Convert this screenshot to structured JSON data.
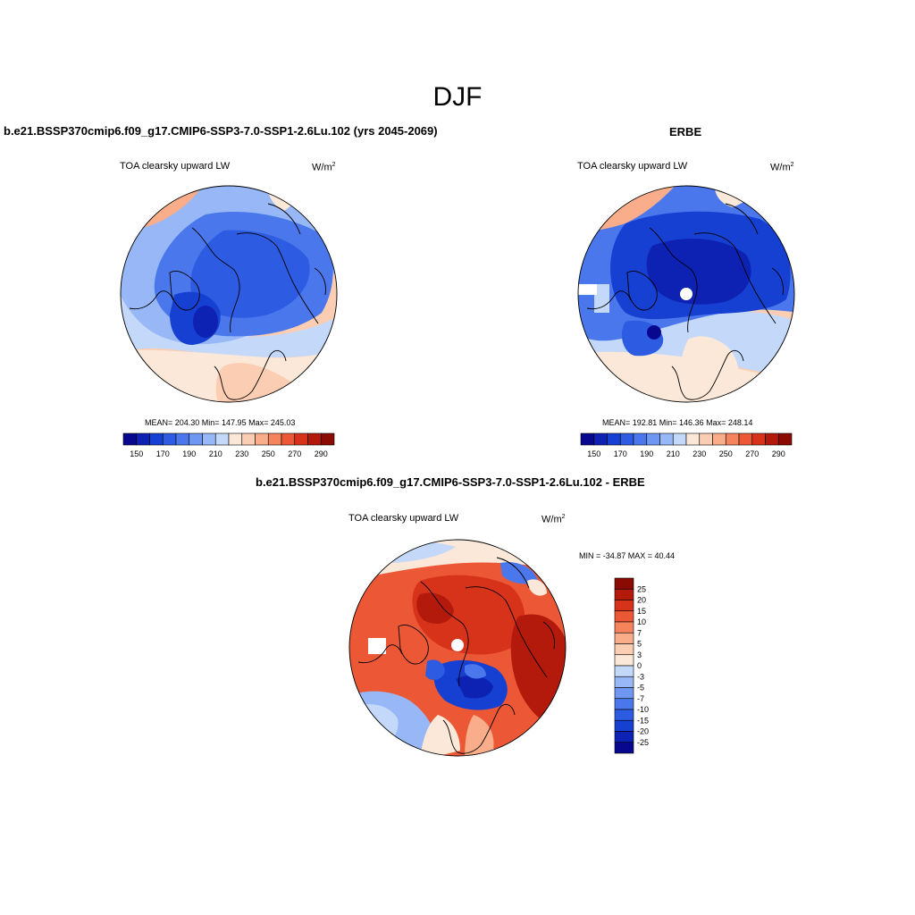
{
  "figure": {
    "season": "DJF",
    "panel_a_title": "b.e21.BSSP370cmip6.f09_g17.CMIP6-SSP3-7.0-SSP1-2.6Lu.102 (yrs 2045-2069)",
    "panel_b_title": "ERBE",
    "panel_c_title": "b.e21.BSSP370cmip6.f09_g17.CMIP6-SSP3-7.0-SSP1-2.6Lu.102 - ERBE"
  },
  "chart_data": [
    {
      "type": "heatmap",
      "projection": "north polar stereographic",
      "title": "TOA clearsky upward LW",
      "units": "W/m",
      "units_exp": "2",
      "stats": "MEAN= 204.30  Min= 147.95  Max= 245.03",
      "mean": 204.3,
      "min": 147.95,
      "max": 245.03,
      "colorbar": {
        "orientation": "horizontal",
        "levels": [
          150,
          160,
          170,
          180,
          190,
          200,
          210,
          220,
          230,
          240,
          250,
          260,
          270,
          280,
          290
        ],
        "tick_labels": [
          "150",
          "170",
          "190",
          "210",
          "230",
          "250",
          "270",
          "290"
        ],
        "colors": [
          "#08088e",
          "#0d21b3",
          "#1540d1",
          "#2d5be2",
          "#4a78ec",
          "#6f97f2",
          "#97b7f6",
          "#c4d9fa",
          "#fce8d8",
          "#fbcdb2",
          "#f9ad8a",
          "#f5845d",
          "#ec5835",
          "#d7331a",
          "#b41a0c",
          "#8a0a04"
        ]
      }
    },
    {
      "type": "heatmap",
      "projection": "north polar stereographic",
      "title": "TOA clearsky upward LW",
      "units": "W/m",
      "units_exp": "2",
      "stats": "MEAN= 192.81  Min= 146.36  Max= 248.14",
      "mean": 192.81,
      "min": 146.36,
      "max": 248.14,
      "colorbar": {
        "orientation": "horizontal",
        "levels": [
          150,
          160,
          170,
          180,
          190,
          200,
          210,
          220,
          230,
          240,
          250,
          260,
          270,
          280,
          290
        ],
        "tick_labels": [
          "150",
          "170",
          "190",
          "210",
          "230",
          "250",
          "270",
          "290"
        ],
        "colors": [
          "#08088e",
          "#0d21b3",
          "#1540d1",
          "#2d5be2",
          "#4a78ec",
          "#6f97f2",
          "#97b7f6",
          "#c4d9fa",
          "#fce8d8",
          "#fbcdb2",
          "#f9ad8a",
          "#f5845d",
          "#ec5835",
          "#d7331a",
          "#b41a0c",
          "#8a0a04"
        ]
      }
    },
    {
      "type": "heatmap",
      "projection": "north polar stereographic",
      "title": "TOA clearsky upward LW",
      "units": "W/m",
      "units_exp": "2",
      "stats": "MIN = -34.87 MAX =  40.44",
      "min": -34.87,
      "max": 40.44,
      "colorbar": {
        "orientation": "vertical",
        "levels": [
          -25,
          -20,
          -15,
          -10,
          -7,
          -5,
          -3,
          0,
          3,
          5,
          7,
          10,
          15,
          20,
          25
        ],
        "tick_labels": [
          "25",
          "20",
          "15",
          "10",
          "7",
          "5",
          "3",
          "0",
          "-3",
          "-5",
          "-7",
          "-10",
          "-15",
          "-20",
          "-25"
        ],
        "colors": [
          "#8a0a04",
          "#b41a0c",
          "#d7331a",
          "#ec5835",
          "#f5845d",
          "#f9ad8a",
          "#fbcdb2",
          "#fce8d8",
          "#c4d9fa",
          "#97b7f6",
          "#6f97f2",
          "#4a78ec",
          "#2d5be2",
          "#1540d1",
          "#0d21b3",
          "#08088e"
        ]
      }
    }
  ]
}
